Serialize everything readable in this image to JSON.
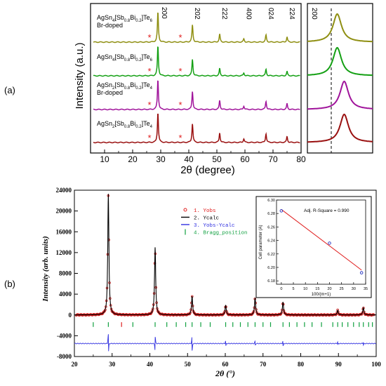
{
  "panel_labels": {
    "a": "(a)",
    "b": "(b)"
  },
  "chart_data": [
    {
      "type": "line",
      "panel": "(a)",
      "xlabel": "2θ (degree)",
      "ylabel": "Intensity (a.u.)",
      "xlim": [
        5,
        80
      ],
      "xticks": [
        "10",
        "20",
        "30",
        "40",
        "50",
        "60",
        "70",
        "80"
      ],
      "peak_labels": [
        {
          "text": "200",
          "x": 29.0
        },
        {
          "text": "202",
          "x": 41.3
        },
        {
          "text": "222",
          "x": 51.0
        },
        {
          "text": "400",
          "x": 59.6
        },
        {
          "text": "024",
          "x": 67.5
        },
        {
          "text": "224",
          "x": 75.0
        }
      ],
      "impurity_marker": "*",
      "impurity_positions": [
        26.0,
        37.0
      ],
      "series": [
        {
          "name_parts": [
            "AgSn",
            "4",
            "[Sb",
            "0.8",
            "Bi",
            "0.2",
            "]Te",
            "6"
          ],
          "note": "Br-doped",
          "color": "#8f8f12",
          "peaks": [
            [
              29.0,
              1.0
            ],
            [
              41.3,
              0.58
            ],
            [
              51.0,
              0.26
            ],
            [
              59.6,
              0.11
            ],
            [
              67.5,
              0.24
            ],
            [
              75.0,
              0.17
            ]
          ]
        },
        {
          "name_parts": [
            "AgSn",
            "4",
            "[Sb",
            "0.8",
            "Bi",
            "0.2",
            "]Te",
            "6"
          ],
          "note": "",
          "color": "#14a014",
          "peaks": [
            [
              29.0,
              1.0
            ],
            [
              41.3,
              0.56
            ],
            [
              51.0,
              0.24
            ],
            [
              59.6,
              0.1
            ],
            [
              67.5,
              0.22
            ],
            [
              75.0,
              0.14
            ]
          ]
        },
        {
          "name_parts": [
            "AgSn",
            "2",
            "[Sb",
            "0.8",
            "Bi",
            "0.2",
            "]Te",
            "4"
          ],
          "note": "Br-doped",
          "color": "#a0149b",
          "peaks": [
            [
              29.0,
              1.0
            ],
            [
              41.3,
              0.62
            ],
            [
              51.0,
              0.3
            ],
            [
              59.6,
              0.12
            ],
            [
              67.5,
              0.28
            ],
            [
              75.0,
              0.19
            ]
          ]
        },
        {
          "name_parts": [
            "AgSn",
            "2",
            "[Sb",
            "0.8",
            "Bi",
            "0.2",
            "]Te",
            "4"
          ],
          "note": "",
          "color": "#9a1010",
          "peaks": [
            [
              29.0,
              1.0
            ],
            [
              41.3,
              0.64
            ],
            [
              51.0,
              0.32
            ],
            [
              59.6,
              0.13
            ],
            [
              67.5,
              0.3
            ],
            [
              75.0,
              0.2
            ]
          ]
        }
      ],
      "inset_peak_label": "200"
    },
    {
      "type": "line",
      "panel": "(b)",
      "xlabel": "2θ (°)",
      "ylabel": "Intensity (arb. units)",
      "xlim": [
        20,
        100
      ],
      "ylim": [
        -8000,
        24000
      ],
      "xticks": [
        "20",
        "30",
        "40",
        "50",
        "60",
        "70",
        "80",
        "90",
        "100"
      ],
      "yticks": [
        "-8000",
        "-4000",
        "0",
        "4000",
        "8000",
        "12000",
        "16000",
        "20000",
        "24000"
      ],
      "legend": [
        {
          "text": "1. Yobs",
          "color": "#e02020",
          "symbol": "circle"
        },
        {
          "text": "2. Ycalc",
          "color": "#000000",
          "symbol": "line"
        },
        {
          "text": "3. Yobs-Ycalc",
          "color": "#3030e0",
          "symbol": "line"
        },
        {
          "text": "4. Bragg_position",
          "color": "#10a040",
          "symbol": "tick"
        }
      ],
      "peaks": [
        [
          29.0,
          23300
        ],
        [
          41.4,
          13000
        ],
        [
          51.2,
          3600
        ],
        [
          60.1,
          1900
        ],
        [
          67.9,
          3300
        ],
        [
          75.3,
          2500
        ],
        [
          89.8,
          900
        ],
        [
          96.6,
          1400
        ]
      ],
      "bragg_green": [
        25.0,
        29.0,
        35.5,
        41.4,
        44.5,
        47.0,
        49.5,
        51.2,
        53.5,
        56.0,
        60.1,
        62.0,
        64.0,
        66.0,
        67.9,
        70.0,
        72.0,
        75.3,
        77.0,
        79.0,
        81.0,
        83.0,
        85.5,
        88.5,
        89.8,
        91.0,
        92.5,
        94.0,
        95.5,
        96.6,
        98.0,
        99.0
      ],
      "bragg_red": [
        32.5
      ],
      "inset": {
        "type": "scatter",
        "xlabel": "100/(m+1)",
        "ylabel": "Cell parameter (A)",
        "annotation": "Adj. R-Square = 0.990",
        "xlim": [
          -2,
          35
        ],
        "ylim": [
          6.175,
          6.3
        ],
        "xticks": [
          "0",
          "5",
          "10",
          "15",
          "20",
          "25",
          "30",
          "35"
        ],
        "yticks": [
          "6.18",
          "6.20",
          "6.22",
          "6.24",
          "6.26",
          "6.28",
          "6.30"
        ],
        "points": [
          [
            0,
            6.284
          ],
          [
            20,
            6.236
          ],
          [
            33.3,
            6.192
          ]
        ],
        "fit": [
          [
            0,
            6.286
          ],
          [
            33.3,
            6.196
          ]
        ]
      }
    }
  ]
}
